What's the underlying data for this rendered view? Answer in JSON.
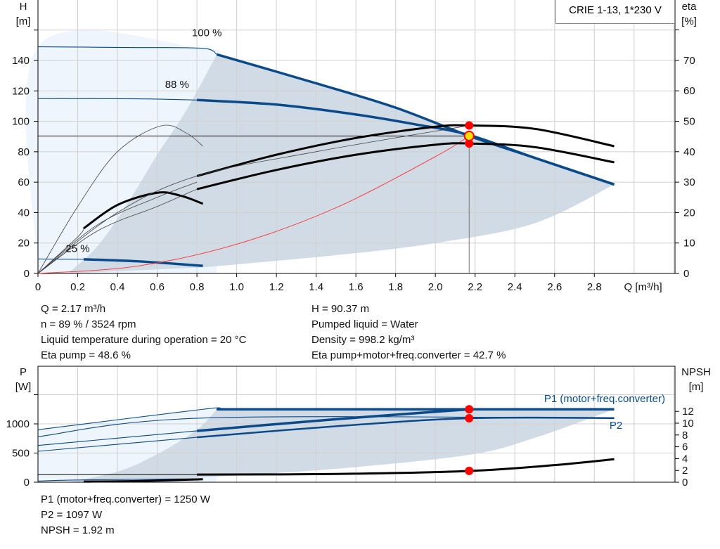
{
  "title_box": "CRIE 1-13, 1*230 V",
  "colors": {
    "curve_blue": "#0a4a8a",
    "shade_dark": "#d0dbe6",
    "shade_light": "#eef5fc",
    "grid": "#d0d0d0",
    "operating_point": "#ff0000",
    "marker_yellow": "#ffe000",
    "system_curve": "#ff3030",
    "eta_curves": "#000000"
  },
  "chart_data": [
    {
      "type": "line",
      "title": "",
      "x_label": "Q [m³/h]",
      "y_label_left": [
        "H",
        "[m]"
      ],
      "y_label_right": [
        "eta",
        "[%]"
      ],
      "xlim": [
        0,
        3.2
      ],
      "ylim_left": [
        0,
        180
      ],
      "ylim_right": [
        0,
        90
      ],
      "grid": true,
      "x_ticks": [
        "0",
        "0.2",
        "0.4",
        "0.6",
        "0.8",
        "1.0",
        "1.2",
        "1.4",
        "1.6",
        "1.8",
        "2.0",
        "2.2",
        "2.4",
        "2.6",
        "2.8"
      ],
      "y_ticks_left": [
        "0",
        "20",
        "40",
        "60",
        "80",
        "100",
        "120",
        "140"
      ],
      "y_ticks_right": [
        "0",
        "10",
        "20",
        "30",
        "40",
        "50",
        "60",
        "70"
      ],
      "speed_labels": [
        {
          "text": "100 %",
          "q": 0.85,
          "h": 156
        },
        {
          "text": "88 %",
          "q": 0.7,
          "h": 122
        },
        {
          "text": "25 %",
          "q": 0.2,
          "h": 14
        }
      ],
      "series": [
        {
          "axis": "H",
          "style": "thin-blue",
          "points": [
            [
              0,
              149
            ],
            [
              0.5,
              148.5
            ],
            [
              0.83,
              148
            ],
            [
              0.9,
              144
            ]
          ]
        },
        {
          "axis": "H",
          "style": "thick-blue",
          "points": [
            [
              0.9,
              144
            ],
            [
              1.4,
              125
            ],
            [
              1.8,
              109
            ],
            [
              2.17,
              90.4
            ],
            [
              2.5,
              76
            ],
            [
              2.9,
              58.5
            ]
          ]
        },
        {
          "axis": "H",
          "style": "thin-blue",
          "points": [
            [
              0,
              115
            ],
            [
              0.5,
              114.8
            ],
            [
              0.8,
              114
            ]
          ]
        },
        {
          "axis": "H",
          "style": "thick-blue",
          "points": [
            [
              0.8,
              114
            ],
            [
              1.2,
              111
            ],
            [
              1.6,
              104.5
            ],
            [
              1.9,
              98
            ],
            [
              2.17,
              91
            ],
            [
              2.5,
              76
            ],
            [
              2.9,
              58.5
            ]
          ]
        },
        {
          "axis": "H",
          "style": "thin-blue",
          "points": [
            [
              0,
              9.5
            ],
            [
              0.23,
              9.3
            ]
          ]
        },
        {
          "axis": "H",
          "style": "thick-blue",
          "points": [
            [
              0.23,
              9.3
            ],
            [
              0.5,
              8
            ],
            [
              0.83,
              5
            ]
          ]
        },
        {
          "axis": "H",
          "style": "system-red",
          "points": [
            [
              0,
              0
            ],
            [
              0.5,
              4.8
            ],
            [
              1,
              19.2
            ],
            [
              1.5,
              43.2
            ],
            [
              2,
              76.8
            ],
            [
              2.17,
              90.37
            ]
          ]
        },
        {
          "axis": "eta",
          "style": "thin-black",
          "points": [
            [
              0,
              0
            ],
            [
              0.2,
              22
            ],
            [
              0.4,
              40
            ],
            [
              0.62,
              48.5
            ],
            [
              0.75,
              46
            ],
            [
              0.83,
              41.8
            ]
          ]
        },
        {
          "axis": "eta",
          "style": "thick-black",
          "points": [
            [
              0.23,
              14.8
            ],
            [
              0.4,
              22.5
            ],
            [
              0.6,
              26.5
            ],
            [
              0.72,
              25.5
            ],
            [
              0.83,
              22.9
            ]
          ]
        },
        {
          "axis": "eta",
          "style": "thick-black",
          "points": [
            [
              0.8,
              32
            ],
            [
              1.2,
              39
            ],
            [
              1.6,
              44.5
            ],
            [
              2.0,
              48.2
            ],
            [
              2.17,
              48.6
            ],
            [
              2.5,
              47.5
            ],
            [
              2.9,
              41.8
            ]
          ]
        },
        {
          "axis": "eta",
          "style": "thick-black",
          "points": [
            [
              0.8,
              27.7
            ],
            [
              1.2,
              34
            ],
            [
              1.6,
              39
            ],
            [
              2.0,
              42.3
            ],
            [
              2.17,
              42.7
            ],
            [
              2.5,
              41.5
            ],
            [
              2.9,
              36.5
            ]
          ]
        },
        {
          "axis": "eta",
          "style": "thin-black",
          "points": [
            [
              0,
              0
            ],
            [
              0.3,
              14
            ],
            [
              0.6,
              22
            ],
            [
              0.8,
              27.7
            ]
          ]
        },
        {
          "axis": "eta",
          "style": "thin-black",
          "points": [
            [
              0,
              0
            ],
            [
              0.3,
              16
            ],
            [
              0.6,
              25
            ],
            [
              0.8,
              30
            ]
          ]
        },
        {
          "axis": "eta",
          "style": "thin-black",
          "points": [
            [
              0,
              0
            ],
            [
              0.2,
              12
            ],
            [
              0.23,
              14.8
            ]
          ]
        },
        {
          "axis": "eta",
          "style": "thin-black",
          "points": [
            [
              0,
              0
            ],
            [
              0.4,
              20
            ],
            [
              0.8,
              32
            ],
            [
              1.4,
              40
            ],
            [
              2.17,
              48.6
            ]
          ]
        }
      ],
      "operating_point": {
        "q": 2.17,
        "h": 90.37,
        "eta_pump": 48.6,
        "eta_total": 42.7
      }
    },
    {
      "type": "line",
      "title": "",
      "y_label_left": [
        "P",
        "[W]"
      ],
      "y_label_right": [
        "NPSH",
        "[m]"
      ],
      "xlim": [
        0,
        3.2
      ],
      "ylim_left": [
        0,
        1600
      ],
      "ylim_right": [
        0,
        16
      ],
      "grid": true,
      "y_ticks_left": [
        "0",
        "500",
        "1000"
      ],
      "y_ticks_right": [
        "0",
        "2",
        "4",
        "6",
        "8",
        "10",
        "12"
      ],
      "series_labels": [
        {
          "text": "P1 (motor+freq.converter)",
          "q": 2.9,
          "p": 1420
        },
        {
          "text": "P2",
          "q": 2.9,
          "p": 960
        }
      ],
      "series": [
        {
          "axis": "P",
          "style": "thin-blue",
          "points": [
            [
              0,
              900
            ],
            [
              0.83,
              1250
            ],
            [
              0.9,
              1250
            ]
          ]
        },
        {
          "axis": "P",
          "style": "thick-blue",
          "points": [
            [
              0.9,
              1250
            ],
            [
              2.17,
              1250
            ],
            [
              2.9,
              1250
            ]
          ]
        },
        {
          "axis": "P",
          "style": "thin-blue",
          "points": [
            [
              0,
              780
            ],
            [
              0.83,
              1100
            ],
            [
              2.9,
              1100
            ]
          ]
        },
        {
          "axis": "P",
          "style": "thin-blue",
          "points": [
            [
              0,
              630
            ],
            [
              0.8,
              880
            ]
          ]
        },
        {
          "axis": "P",
          "style": "thick-blue",
          "points": [
            [
              0.8,
              880
            ],
            [
              1.5,
              1080
            ],
            [
              2.17,
              1250
            ]
          ]
        },
        {
          "axis": "P",
          "style": "thin-blue",
          "points": [
            [
              0,
              530
            ],
            [
              0.8,
              770
            ]
          ]
        },
        {
          "axis": "P",
          "style": "mid-blue",
          "points": [
            [
              0.8,
              770
            ],
            [
              1.5,
              960
            ],
            [
              2.17,
              1097
            ],
            [
              2.9,
              1100
            ]
          ]
        },
        {
          "axis": "P",
          "style": "thin-blue",
          "points": [
            [
              0,
              20
            ],
            [
              0.23,
              40
            ],
            [
              0.83,
              60
            ]
          ]
        },
        {
          "axis": "NPSH",
          "style": "thick-black",
          "points": [
            [
              0.23,
              0.1
            ],
            [
              0.5,
              0.2
            ],
            [
              0.83,
              0.5
            ]
          ]
        },
        {
          "axis": "NPSH",
          "style": "thick-black",
          "points": [
            [
              0.8,
              1.3
            ],
            [
              1.5,
              1.4
            ],
            [
              2.17,
              1.9
            ],
            [
              2.6,
              2.9
            ],
            [
              2.9,
              3.9
            ]
          ]
        }
      ],
      "operating_point": {
        "q": 2.17,
        "p1": 1250,
        "p2": 1097,
        "npsh": 1.92
      }
    }
  ],
  "info_top_left": [
    "Q = 2.17 m³/h",
    "n = 89 % / 3524 rpm",
    "Liquid temperature during operation = 20 °C",
    "Eta pump = 48.6 %"
  ],
  "info_top_right": [
    "H = 90.37 m",
    "Pumped liquid = Water",
    "Density = 998.2 kg/m³",
    "Eta pump+motor+freq.converter = 42.7 %"
  ],
  "info_bottom": [
    "P1 (motor+freq.converter) = 1250 W",
    "P2 = 1097 W",
    "NPSH = 1.92 m"
  ]
}
